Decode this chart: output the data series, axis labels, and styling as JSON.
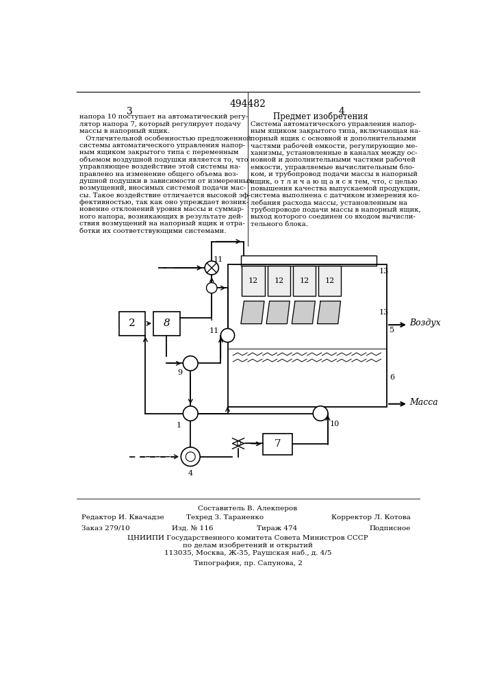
{
  "patent_number": "494482",
  "page_left": "3",
  "page_right": "4",
  "section_title": "Предмет изобретения",
  "left_text": [
    "напора 10 поступает на автоматический регу-",
    "лятор напора 7, который регулирует подачу",
    "массы в напорный ящик.",
    "   Отличительной особенностью предложенной",
    "системы автоматического управления напор-",
    "ным ящиком закрытого типа с переменным",
    "объемом воздушной подушки является то, что",
    "управляющее воздействие этой системы на-",
    "правлено на изменение общего объема воз-",
    "душной подушки в зависимости от измеренных",
    "возмущений, вносимых системой подачи мас-",
    "сы. Такое воздействие отличается высокой эф-",
    "фективностью, так как оно упреждает возник-",
    "новение отклонений уровня массы и суммар-",
    "ного напора, возникающих в результате дей-",
    "ствия возмущений на напорный ящик и отра-",
    "ботки их соответствующими системами."
  ],
  "right_text": [
    "Система автоматического управления напор-",
    "ным ящиком закрытого типа, включающая на-",
    "порный ящик с основной и дополнительными",
    "частями рабочей емкости, регулирующие ме-",
    "ханизмы, установленные в каналах между ос-",
    "новной и дополнительными частями рабочей",
    "емкости, управляемые вычислительным бло-",
    "ком, и трубопровод подачи массы в напорный",
    "ящик, о т л и ч а ю щ а я с я тем, что, с целью",
    "повышения качества выпускаемой продукции,",
    "система выполнена с датчиком измерения ко-",
    "лебания расхода массы, установленным на",
    "трубопроводе подачи массы в напорный ящик,",
    "выход которого соединен со входом вычисли-",
    "тельного блока."
  ],
  "bottom_composer_label": "Составитель В. Алекперов",
  "editor_label": "Редактор И. Квачадзе",
  "tech_label": "Техред З. Тараненко",
  "corrector_label": "Корректор Л. Котова",
  "order_label": "Заказ 279/10",
  "izd_label": "Изд. № 116",
  "tirazh_label": "Тираж 474",
  "podpisnoe_label": "Подписное",
  "cniipli_label": "ЦНИИПИ Государственного комитета Совета Министров СССР",
  "cniipli_label2": "по делам изобретений и открытий",
  "cniipli_label3": "113035, Москва, Ж-35, Раушская наб., д. 4/5",
  "tipografia_label": "Типография, пр. Сапунова, 2",
  "bg_color": "#ffffff",
  "line_color": "#000000",
  "text_color": "#000000"
}
